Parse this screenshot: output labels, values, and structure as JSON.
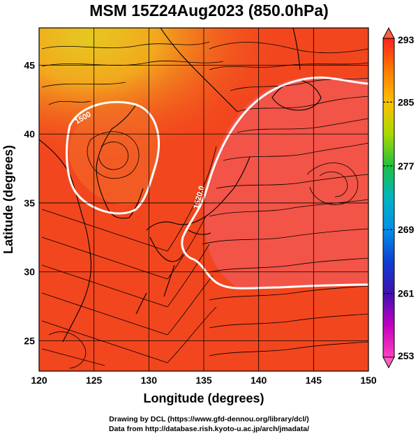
{
  "title": "MSM 15Z24Aug2023 (850.0hPa)",
  "map": {
    "xlabel": "Longitude (degrees)",
    "ylabel": "Latitude  (degrees)",
    "lon_range": [
      120,
      150
    ],
    "lat_range": [
      22.8,
      47.7
    ],
    "lon_ticks": [
      "120",
      "125",
      "130",
      "135",
      "140",
      "145",
      "150"
    ],
    "lat_ticks": [
      "25",
      "30",
      "35",
      "40",
      "45"
    ],
    "contour_labels": [
      "1500",
      "1520.0"
    ],
    "colors": {
      "background_field": "#f2461e",
      "warm_field": "#f25a55",
      "cool_field": "#f2a81e",
      "contour": "#ffffff",
      "streamline": "#000000",
      "grid": "#000000"
    }
  },
  "colorbar": {
    "ticks": [
      "293",
      "285",
      "277",
      "269",
      "261",
      "253"
    ],
    "stops": [
      "#ff2020",
      "#ff7a00",
      "#ffc000",
      "#a8d800",
      "#20c040",
      "#00b4c0",
      "#0090e8",
      "#1040d0",
      "#4010b0",
      "#c000c0",
      "#ff40c0"
    ]
  },
  "credits": {
    "line1": "Drawing by DCL (https://www.gfd-dennou.org/library/dcl/)",
    "line2": "Data from http://database.rish.kyoto-u.ac.jp/arch/jmadata/"
  }
}
